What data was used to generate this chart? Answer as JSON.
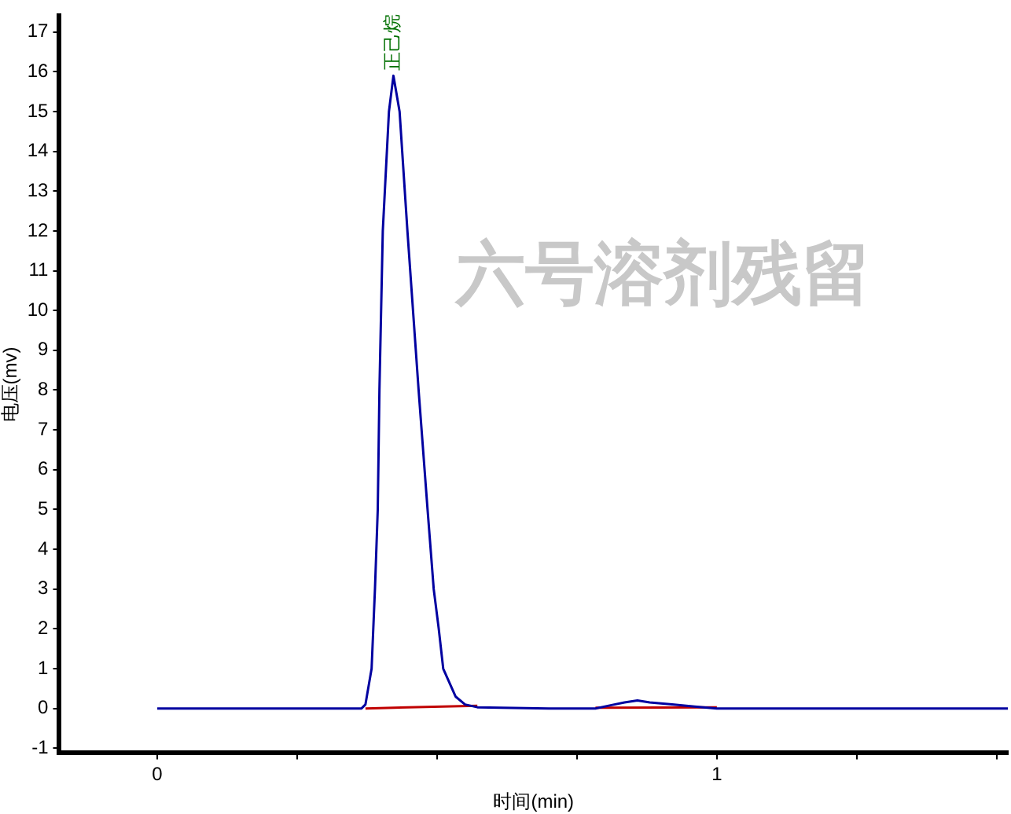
{
  "chart_data": {
    "type": "line",
    "xlabel": "时间(min)",
    "ylabel": "电压(mv)",
    "xlim": [
      -0.175,
      1.52
    ],
    "xticks": [
      0,
      {
        "value": 0.25,
        "label": null
      },
      {
        "value": 0.5,
        "label": null
      },
      {
        "value": 0.75,
        "label": null
      },
      1,
      {
        "value": 1.25,
        "label": null
      },
      {
        "value": 1.5,
        "label": null
      }
    ],
    "ylim": [
      -1.12,
      17.4
    ],
    "yticks": [
      -1,
      0,
      1,
      2,
      3,
      4,
      5,
      6,
      7,
      8,
      9,
      10,
      11,
      12,
      13,
      14,
      15,
      16,
      17
    ],
    "grid": false,
    "legend": false,
    "marker": "none",
    "line_style": "solid",
    "series": [
      {
        "color": "#0000a0",
        "x": [
          0,
          0.2,
          0.365,
          0.372,
          0.383,
          0.389,
          0.394,
          0.397,
          0.403,
          0.414,
          0.422,
          0.433,
          0.447,
          0.467,
          0.483,
          0.494,
          0.503,
          0.511,
          0.533,
          0.55,
          0.572,
          0.7,
          0.783,
          0.81,
          0.835,
          0.858,
          0.88,
          0.92,
          0.96,
          1.0,
          1.2,
          1.52
        ],
        "values": [
          0,
          0,
          0,
          0.1,
          1,
          3,
          5,
          8,
          12,
          15,
          15.9,
          15,
          12,
          8,
          5,
          3,
          2,
          1,
          0.3,
          0.1,
          0.03,
          0,
          0,
          0.08,
          0.15,
          0.2,
          0.15,
          0.1,
          0.05,
          0,
          0,
          0
        ]
      },
      {
        "color": "#c00000",
        "x": [
          0.372,
          0.572
        ],
        "values": [
          0,
          0.07
        ]
      },
      {
        "color": "#c00000",
        "x": [
          0.783,
          1.0
        ],
        "values": [
          0.02,
          0.03
        ]
      }
    ],
    "annotations": [
      "六号溶剂残留",
      {
        "text": "正己烷",
        "x": 0.422,
        "y": 15.9
      }
    ]
  }
}
